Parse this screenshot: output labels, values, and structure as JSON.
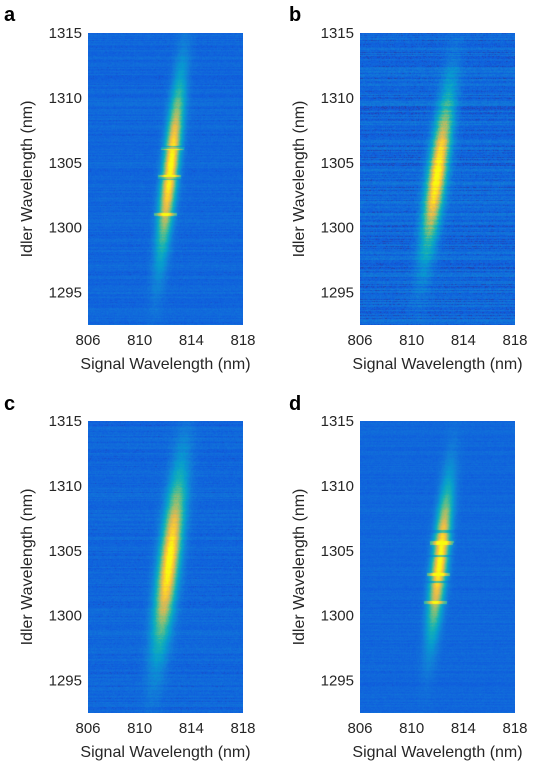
{
  "chart_data": [
    {
      "panel": "a",
      "type": "heatmap",
      "xlabel": "Signal Wavelength (nm)",
      "ylabel": "Idler Wavelength (nm)",
      "xlim": [
        806,
        818
      ],
      "ylim": [
        1292.5,
        1315
      ],
      "xticks": [
        806,
        810,
        814,
        818
      ],
      "yticks": [
        1295,
        1300,
        1305,
        1310,
        1315
      ],
      "colormap": "parula",
      "peak": {
        "x": 812.4,
        "y": 1304.6,
        "sigma_along": 4.4,
        "sigma_across": 0.42,
        "tilt": 0.11
      },
      "bright_streaks": [
        1306.1,
        1303.9,
        1301.0
      ],
      "dark_gaps": [
        1306.2,
        1303.8
      ],
      "noise": 0.07
    },
    {
      "panel": "b",
      "type": "heatmap",
      "xlabel": "Signal Wavelength (nm)",
      "ylabel": "Idler Wavelength (nm)",
      "xlim": [
        806,
        818
      ],
      "ylim": [
        1292.5,
        1315
      ],
      "xticks": [
        806,
        810,
        814,
        818
      ],
      "yticks": [
        1295,
        1300,
        1305,
        1310,
        1315
      ],
      "colormap": "parula",
      "peak": {
        "x": 812.0,
        "y": 1304.2,
        "sigma_along": 4.0,
        "sigma_across": 0.5,
        "tilt": 0.14
      },
      "bright_streaks": [],
      "dark_gaps": [],
      "noise": 0.14
    },
    {
      "panel": "c",
      "type": "heatmap",
      "xlabel": "Signal Wavelength (nm)",
      "ylabel": "Idler Wavelength (nm)",
      "xlim": [
        806,
        818
      ],
      "ylim": [
        1292.5,
        1315
      ],
      "xticks": [
        806,
        810,
        814,
        818
      ],
      "yticks": [
        1295,
        1300,
        1305,
        1310,
        1315
      ],
      "colormap": "parula",
      "peak": {
        "x": 812.3,
        "y": 1304.2,
        "sigma_along": 4.5,
        "sigma_across": 0.55,
        "tilt": 0.12
      },
      "bright_streaks": [],
      "dark_gaps": [],
      "noise": 0.08
    },
    {
      "panel": "d",
      "type": "heatmap",
      "xlabel": "Signal Wavelength (nm)",
      "ylabel": "Idler Wavelength (nm)",
      "xlim": [
        806,
        818
      ],
      "ylim": [
        1292.5,
        1315
      ],
      "xticks": [
        806,
        810,
        814,
        818
      ],
      "yticks": [
        1295,
        1300,
        1305,
        1310,
        1315
      ],
      "colormap": "parula",
      "peak": {
        "x": 812.2,
        "y": 1304.3,
        "sigma_along": 3.8,
        "sigma_across": 0.42,
        "tilt": 0.11
      },
      "bright_streaks": [
        1305.6,
        1303.2,
        1301.0
      ],
      "dark_gaps": [
        1306.5,
        1304.6,
        1302.6
      ],
      "noise": 0.05
    }
  ]
}
